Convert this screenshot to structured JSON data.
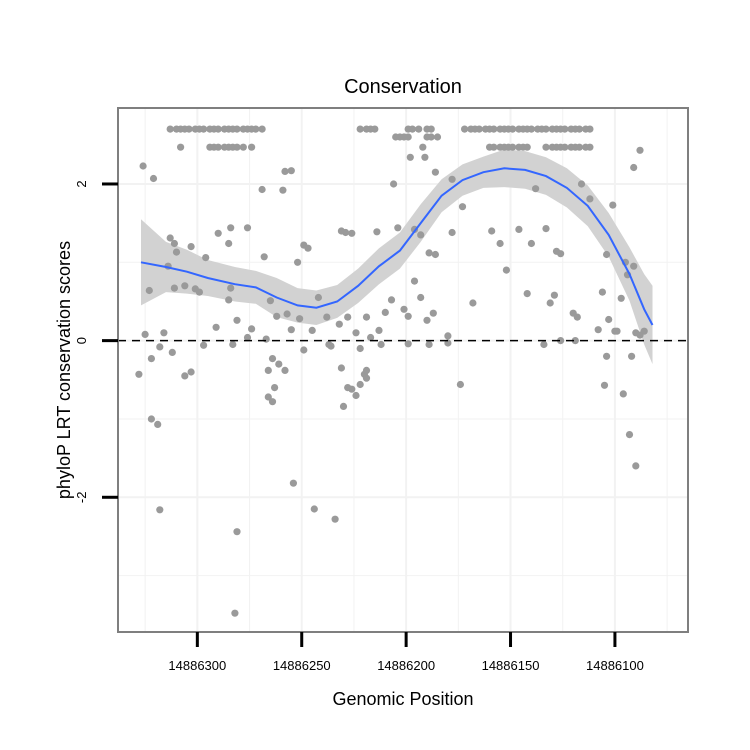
{
  "chart_data": {
    "type": "scatter",
    "title": "Conservation",
    "xlabel": "Genomic Position",
    "ylabel": "phyloP LRT conservation scores",
    "x_reversed": true,
    "xlim": [
      14886338,
      14886065
    ],
    "ylim": [
      -3.72,
      2.97
    ],
    "x_ticks": [
      14886300,
      14886250,
      14886200,
      14886150,
      14886100
    ],
    "y_ticks": [
      -2,
      0,
      2
    ],
    "grid": true,
    "reference_line": {
      "y": 0,
      "style": "dashed"
    },
    "colors": {
      "points": "#9a9a9a",
      "smooth_line": "#3366ff",
      "ribbon": "#d2d2d2",
      "panel_border": "#7f7f7f",
      "grid": "#f2f2f2"
    },
    "points": [
      [
        14886313,
        2.7
      ],
      [
        14886310,
        2.7
      ],
      [
        14886308,
        2.7
      ],
      [
        14886306,
        2.7
      ],
      [
        14886304,
        2.7
      ],
      [
        14886301,
        2.7
      ],
      [
        14886299,
        2.7
      ],
      [
        14886297,
        2.7
      ],
      [
        14886294,
        2.7
      ],
      [
        14886292,
        2.7
      ],
      [
        14886290,
        2.7
      ],
      [
        14886287,
        2.7
      ],
      [
        14886285,
        2.7
      ],
      [
        14886283,
        2.7
      ],
      [
        14886281,
        2.7
      ],
      [
        14886278,
        2.7
      ],
      [
        14886276,
        2.7
      ],
      [
        14886274,
        2.7
      ],
      [
        14886272,
        2.7
      ],
      [
        14886269,
        2.7
      ],
      [
        14886222,
        2.7
      ],
      [
        14886219,
        2.7
      ],
      [
        14886217,
        2.7
      ],
      [
        14886215,
        2.7
      ],
      [
        14886199,
        2.7
      ],
      [
        14886197,
        2.7
      ],
      [
        14886194,
        2.7
      ],
      [
        14886190,
        2.7
      ],
      [
        14886188,
        2.7
      ],
      [
        14886172,
        2.7
      ],
      [
        14886169,
        2.7
      ],
      [
        14886167,
        2.7
      ],
      [
        14886165,
        2.7
      ],
      [
        14886162,
        2.7
      ],
      [
        14886160,
        2.7
      ],
      [
        14886158,
        2.7
      ],
      [
        14886155,
        2.7
      ],
      [
        14886153,
        2.7
      ],
      [
        14886151,
        2.7
      ],
      [
        14886149,
        2.7
      ],
      [
        14886146,
        2.7
      ],
      [
        14886144,
        2.7
      ],
      [
        14886142,
        2.7
      ],
      [
        14886140,
        2.7
      ],
      [
        14886137,
        2.7
      ],
      [
        14886135,
        2.7
      ],
      [
        14886133,
        2.7
      ],
      [
        14886130,
        2.7
      ],
      [
        14886128,
        2.7
      ],
      [
        14886126,
        2.7
      ],
      [
        14886124,
        2.7
      ],
      [
        14886121,
        2.7
      ],
      [
        14886119,
        2.7
      ],
      [
        14886117,
        2.7
      ],
      [
        14886114,
        2.7
      ],
      [
        14886112,
        2.7
      ],
      [
        14886308,
        2.47
      ],
      [
        14886294,
        2.47
      ],
      [
        14886292,
        2.47
      ],
      [
        14886290,
        2.47
      ],
      [
        14886287,
        2.47
      ],
      [
        14886285,
        2.47
      ],
      [
        14886283,
        2.47
      ],
      [
        14886281,
        2.47
      ],
      [
        14886278,
        2.47
      ],
      [
        14886274,
        2.47
      ],
      [
        14886192,
        2.47
      ],
      [
        14886160,
        2.47
      ],
      [
        14886158,
        2.47
      ],
      [
        14886155,
        2.47
      ],
      [
        14886153,
        2.47
      ],
      [
        14886151,
        2.47
      ],
      [
        14886149,
        2.47
      ],
      [
        14886146,
        2.47
      ],
      [
        14886144,
        2.47
      ],
      [
        14886142,
        2.47
      ],
      [
        14886133,
        2.47
      ],
      [
        14886130,
        2.47
      ],
      [
        14886128,
        2.47
      ],
      [
        14886126,
        2.47
      ],
      [
        14886124,
        2.47
      ],
      [
        14886121,
        2.47
      ],
      [
        14886119,
        2.47
      ],
      [
        14886117,
        2.47
      ],
      [
        14886114,
        2.47
      ],
      [
        14886112,
        2.47
      ],
      [
        14886205,
        2.6
      ],
      [
        14886203,
        2.6
      ],
      [
        14886201,
        2.6
      ],
      [
        14886199,
        2.6
      ],
      [
        14886190,
        2.6
      ],
      [
        14886188,
        2.6
      ],
      [
        14886185,
        2.6
      ],
      [
        14886326,
        2.23
      ],
      [
        14886321,
        2.07
      ],
      [
        14886284,
        1.44
      ],
      [
        14886285,
        1.24
      ],
      [
        14886198,
        2.34
      ],
      [
        14886191,
        2.34
      ],
      [
        14886186,
        2.15
      ],
      [
        14886178,
        2.06
      ],
      [
        14886173,
        1.71
      ],
      [
        14886206,
        2.0
      ],
      [
        14886138,
        1.94
      ],
      [
        14886116,
        2.0
      ],
      [
        14886112,
        1.81
      ],
      [
        14886091,
        2.21
      ],
      [
        14886088,
        2.43
      ],
      [
        14886101,
        1.73
      ],
      [
        14886258,
        2.16
      ],
      [
        14886255,
        2.17
      ],
      [
        14886259,
        1.92
      ],
      [
        14886269,
        1.93
      ],
      [
        14886276,
        1.44
      ],
      [
        14886313,
        1.31
      ],
      [
        14886311,
        1.24
      ],
      [
        14886310,
        1.13
      ],
      [
        14886303,
        1.2
      ],
      [
        14886296,
        1.06
      ],
      [
        14886290,
        1.37
      ],
      [
        14886268,
        1.07
      ],
      [
        14886249,
        1.22
      ],
      [
        14886247,
        1.18
      ],
      [
        14886252,
        1.0
      ],
      [
        14886231,
        1.4
      ],
      [
        14886229,
        1.38
      ],
      [
        14886226,
        1.37
      ],
      [
        14886204,
        1.44
      ],
      [
        14886214,
        1.39
      ],
      [
        14886196,
        1.42
      ],
      [
        14886193,
        1.35
      ],
      [
        14886189,
        1.12
      ],
      [
        14886186,
        1.1
      ],
      [
        14886178,
        1.38
      ],
      [
        14886159,
        1.4
      ],
      [
        14886146,
        1.42
      ],
      [
        14886155,
        1.24
      ],
      [
        14886140,
        1.24
      ],
      [
        14886133,
        1.43
      ],
      [
        14886128,
        1.14
      ],
      [
        14886126,
        1.11
      ],
      [
        14886104,
        1.1
      ],
      [
        14886095,
        1.0
      ],
      [
        14886325,
        0.08
      ],
      [
        14886323,
        0.64
      ],
      [
        14886316,
        0.1
      ],
      [
        14886314,
        0.95
      ],
      [
        14886311,
        0.67
      ],
      [
        14886306,
        0.7
      ],
      [
        14886301,
        0.66
      ],
      [
        14886299,
        0.62
      ],
      [
        14886291,
        0.17
      ],
      [
        14886285,
        0.52
      ],
      [
        14886284,
        0.67
      ],
      [
        14886281,
        0.26
      ],
      [
        14886276,
        0.04
      ],
      [
        14886265,
        0.51
      ],
      [
        14886262,
        0.31
      ],
      [
        14886257,
        0.34
      ],
      [
        14886255,
        0.14
      ],
      [
        14886251,
        0.28
      ],
      [
        14886245,
        0.13
      ],
      [
        14886242,
        0.55
      ],
      [
        14886238,
        0.3
      ],
      [
        14886232,
        0.21
      ],
      [
        14886228,
        0.3
      ],
      [
        14886224,
        0.1
      ],
      [
        14886219,
        0.3
      ],
      [
        14886213,
        0.13
      ],
      [
        14886210,
        0.36
      ],
      [
        14886207,
        0.52
      ],
      [
        14886201,
        0.4
      ],
      [
        14886199,
        0.31
      ],
      [
        14886196,
        0.76
      ],
      [
        14886193,
        0.55
      ],
      [
        14886190,
        0.26
      ],
      [
        14886187,
        0.35
      ],
      [
        14886180,
        0.06
      ],
      [
        14886168,
        0.48
      ],
      [
        14886152,
        0.9
      ],
      [
        14886142,
        0.6
      ],
      [
        14886129,
        0.58
      ],
      [
        14886120,
        0.35
      ],
      [
        14886118,
        0.3
      ],
      [
        14886106,
        0.62
      ],
      [
        14886103,
        0.27
      ],
      [
        14886100,
        0.12
      ],
      [
        14886094,
        0.84
      ],
      [
        14886091,
        0.95
      ],
      [
        14886090,
        0.1
      ],
      [
        14886086,
        0.12
      ],
      [
        14886097,
        0.54
      ],
      [
        14886108,
        0.14
      ],
      [
        14886328,
        -0.43
      ],
      [
        14886322,
        -0.23
      ],
      [
        14886318,
        -0.08
      ],
      [
        14886312,
        -0.15
      ],
      [
        14886306,
        -0.45
      ],
      [
        14886303,
        -0.4
      ],
      [
        14886297,
        -0.06
      ],
      [
        14886283,
        -0.05
      ],
      [
        14886274,
        0.15
      ],
      [
        14886267,
        0.02
      ],
      [
        14886266,
        -0.38
      ],
      [
        14886264,
        -0.23
      ],
      [
        14886261,
        -0.3
      ],
      [
        14886258,
        -0.38
      ],
      [
        14886249,
        -0.12
      ],
      [
        14886237,
        -0.05
      ],
      [
        14886236,
        -0.07
      ],
      [
        14886231,
        -0.35
      ],
      [
        14886228,
        -0.6
      ],
      [
        14886224,
        -0.7
      ],
      [
        14886222,
        -0.1
      ],
      [
        14886220,
        -0.43
      ],
      [
        14886217,
        0.04
      ],
      [
        14886212,
        -0.05
      ],
      [
        14886199,
        -0.04
      ],
      [
        14886189,
        -0.05
      ],
      [
        14886180,
        -0.03
      ],
      [
        14886174,
        -0.56
      ],
      [
        14886134,
        -0.05
      ],
      [
        14886131,
        0.48
      ],
      [
        14886119,
        0.0
      ],
      [
        14886105,
        -0.57
      ],
      [
        14886104,
        -0.2
      ],
      [
        14886099,
        0.12
      ],
      [
        14886092,
        -0.2
      ],
      [
        14886088,
        0.07
      ],
      [
        14886126,
        0.0
      ],
      [
        14886263,
        -0.6
      ],
      [
        14886266,
        -0.72
      ],
      [
        14886230,
        -0.84
      ],
      [
        14886226,
        -0.62
      ],
      [
        14886222,
        -0.56
      ],
      [
        14886219,
        -0.48
      ],
      [
        14886219,
        -0.38
      ],
      [
        14886322,
        -1.0
      ],
      [
        14886319,
        -1.07
      ],
      [
        14886264,
        -0.78
      ],
      [
        14886318,
        -2.16
      ],
      [
        14886281,
        -2.44
      ],
      [
        14886244,
        -2.15
      ],
      [
        14886234,
        -2.28
      ],
      [
        14886254,
        -1.82
      ],
      [
        14886090,
        -1.6
      ],
      [
        14886093,
        -1.2
      ],
      [
        14886096,
        -0.68
      ],
      [
        14886282,
        -3.48
      ]
    ],
    "smooth_curve": [
      [
        14886327,
        1.0
      ],
      [
        14886315,
        0.94
      ],
      [
        14886305,
        0.88
      ],
      [
        14886295,
        0.8
      ],
      [
        14886282,
        0.72
      ],
      [
        14886272,
        0.68
      ],
      [
        14886262,
        0.55
      ],
      [
        14886252,
        0.45
      ],
      [
        14886243,
        0.42
      ],
      [
        14886233,
        0.5
      ],
      [
        14886223,
        0.7
      ],
      [
        14886213,
        0.95
      ],
      [
        14886203,
        1.15
      ],
      [
        14886193,
        1.5
      ],
      [
        14886183,
        1.85
      ],
      [
        14886173,
        2.05
      ],
      [
        14886163,
        2.15
      ],
      [
        14886153,
        2.2
      ],
      [
        14886143,
        2.18
      ],
      [
        14886133,
        2.1
      ],
      [
        14886123,
        1.95
      ],
      [
        14886113,
        1.72
      ],
      [
        14886103,
        1.35
      ],
      [
        14886093,
        0.85
      ],
      [
        14886086,
        0.4
      ],
      [
        14886082,
        0.2
      ]
    ],
    "ribbon": [
      [
        14886327,
        0.45,
        1.55
      ],
      [
        14886315,
        0.62,
        1.26
      ],
      [
        14886305,
        0.6,
        1.16
      ],
      [
        14886295,
        0.57,
        1.03
      ],
      [
        14886282,
        0.5,
        0.94
      ],
      [
        14886272,
        0.47,
        0.89
      ],
      [
        14886262,
        0.3,
        0.8
      ],
      [
        14886252,
        0.23,
        0.67
      ],
      [
        14886243,
        0.2,
        0.64
      ],
      [
        14886233,
        0.29,
        0.71
      ],
      [
        14886223,
        0.48,
        0.92
      ],
      [
        14886213,
        0.72,
        1.18
      ],
      [
        14886203,
        0.92,
        1.38
      ],
      [
        14886193,
        1.26,
        1.74
      ],
      [
        14886183,
        1.64,
        2.06
      ],
      [
        14886173,
        1.85,
        2.25
      ],
      [
        14886163,
        1.95,
        2.35
      ],
      [
        14886153,
        1.96,
        2.44
      ],
      [
        14886143,
        1.94,
        2.42
      ],
      [
        14886133,
        1.86,
        2.34
      ],
      [
        14886123,
        1.7,
        2.2
      ],
      [
        14886113,
        1.46,
        1.98
      ],
      [
        14886103,
        1.07,
        1.63
      ],
      [
        14886093,
        0.51,
        1.19
      ],
      [
        14886086,
        -0.05,
        0.85
      ],
      [
        14886082,
        -0.3,
        0.7
      ]
    ]
  }
}
